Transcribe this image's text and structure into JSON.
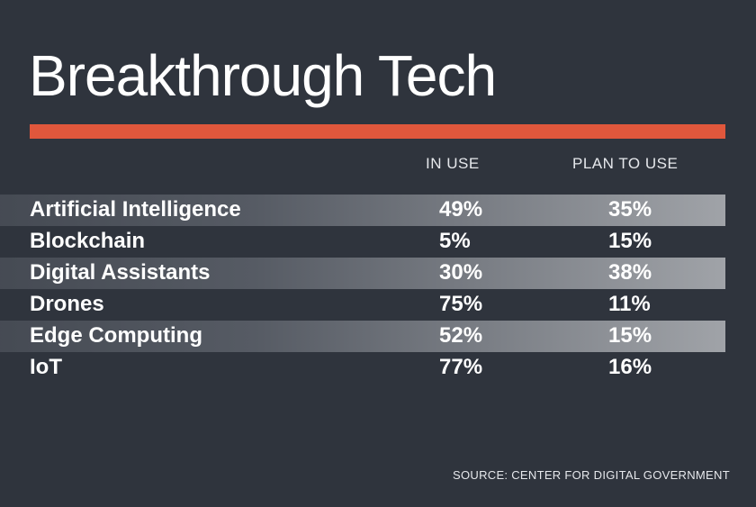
{
  "title": "Breakthrough Tech",
  "source": "SOURCE: CENTER FOR DIGITAL GOVERNMENT",
  "colors": {
    "background": "#2f343d",
    "accent": "#e0573c",
    "text": "#ffffff"
  },
  "chart_data": {
    "type": "table",
    "title": "Breakthrough Tech",
    "columns": [
      "IN USE",
      "PLAN TO USE"
    ],
    "rows": [
      {
        "label": "Artificial Intelligence",
        "in_use": "49%",
        "plan_to_use": "35%"
      },
      {
        "label": "Blockchain",
        "in_use": "5%",
        "plan_to_use": "15%"
      },
      {
        "label": "Digital Assistants",
        "in_use": "30%",
        "plan_to_use": "38%"
      },
      {
        "label": "Drones",
        "in_use": "75%",
        "plan_to_use": "11%"
      },
      {
        "label": "Edge Computing",
        "in_use": "52%",
        "plan_to_use": "15%"
      },
      {
        "label": "IoT",
        "in_use": "77%",
        "plan_to_use": "16%"
      }
    ]
  }
}
